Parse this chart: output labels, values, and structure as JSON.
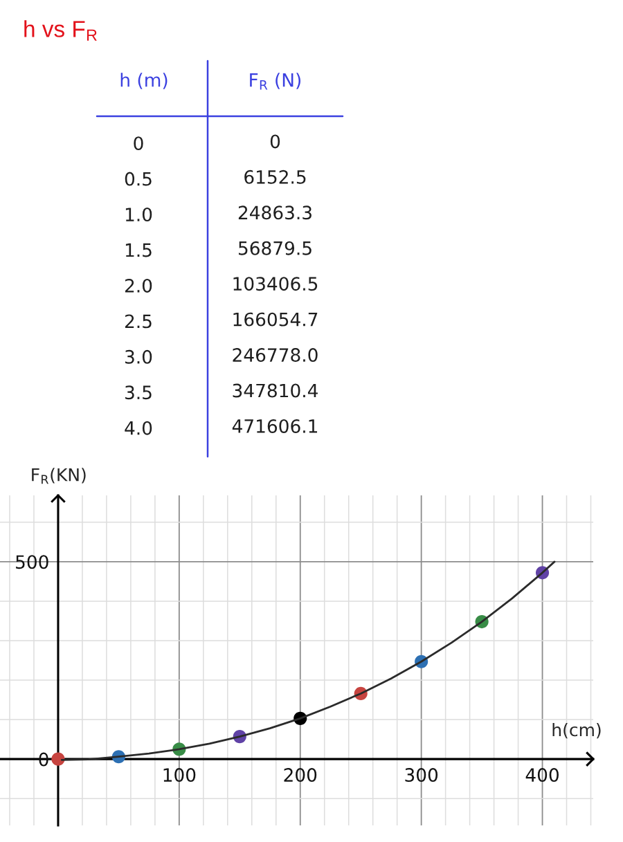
{
  "chart_data": [
    {
      "type": "heatmap",
      "title": "h vs F$_{R}$",
      "ylabel": "h (m)",
      "categories": [
        "F$_{R}$ (N)"
      ],
      "y_categories": [
        "0",
        "0.5",
        "1.0",
        "1.5",
        "2.0",
        "2.5",
        "3.0",
        "3.5",
        "4.0"
      ],
      "cells": [
        [
          0
        ],
        [
          6152.5
        ],
        [
          24863.3
        ],
        [
          56879.5
        ],
        [
          103406.5
        ],
        [
          166054.7
        ],
        [
          246778.0
        ],
        [
          347810.4
        ],
        [
          471606.1
        ]
      ],
      "cell_labels": [
        [
          "0"
        ],
        [
          "6152.5"
        ],
        [
          "24863.3"
        ],
        [
          "56879.5"
        ],
        [
          "103406.5"
        ],
        [
          "166054.7"
        ],
        [
          "246778.0"
        ],
        [
          "347810.4"
        ],
        [
          "471606.1"
        ]
      ]
    },
    {
      "type": "scatter",
      "xlabel": "h(cm)",
      "ylabel": "F$_{R}$(KN)",
      "x": [
        0,
        50,
        100,
        150,
        200,
        250,
        300,
        350,
        400
      ],
      "series": [
        {
          "type": "scatter",
          "marker": "circle",
          "colors": [
            "#c74440",
            "#2d70b3",
            "#388c46",
            "#6042a6",
            "#000000",
            "#c74440",
            "#2d70b3",
            "#388c46",
            "#6042a6"
          ],
          "values": [
            0,
            6,
            25,
            57,
            103,
            166,
            247,
            348,
            472
          ]
        },
        {
          "type": "line",
          "color": "#2b2b2b",
          "line_style": "solid",
          "x": [
            3,
            25,
            50,
            75,
            100,
            125,
            150,
            175,
            200,
            225,
            250,
            275,
            300,
            325,
            350,
            375,
            400,
            410
          ],
          "values": [
            -2,
            -1,
            6,
            14,
            25,
            39,
            57,
            78,
            103,
            133,
            166,
            204,
            247,
            295,
            348,
            407,
            472,
            500
          ]
        }
      ],
      "xlim": [
        -48,
        442
      ],
      "ylim": [
        -168,
        668
      ],
      "xticks": [
        {
          "value": -40,
          "label": null
        },
        {
          "value": -20,
          "label": null
        },
        {
          "value": 0,
          "label": null
        },
        {
          "value": 20,
          "label": null
        },
        {
          "value": 40,
          "label": null
        },
        {
          "value": 60,
          "label": null
        },
        {
          "value": 80,
          "label": null
        },
        100,
        {
          "value": 120,
          "label": null
        },
        {
          "value": 140,
          "label": null
        },
        {
          "value": 160,
          "label": null
        },
        {
          "value": 180,
          "label": null
        },
        200,
        {
          "value": 220,
          "label": null
        },
        {
          "value": 240,
          "label": null
        },
        {
          "value": 260,
          "label": null
        },
        {
          "value": 280,
          "label": null
        },
        300,
        {
          "value": 320,
          "label": null
        },
        {
          "value": 340,
          "label": null
        },
        {
          "value": 360,
          "label": null
        },
        {
          "value": 380,
          "label": null
        },
        400,
        {
          "value": 420,
          "label": null
        },
        {
          "value": 440,
          "label": null
        }
      ],
      "yticks": [
        {
          "value": -100,
          "label": null
        },
        0,
        {
          "value": 100,
          "label": null
        },
        {
          "value": 200,
          "label": null
        },
        {
          "value": 300,
          "label": null
        },
        {
          "value": 400,
          "label": null
        },
        500,
        {
          "value": 600,
          "label": null
        }
      ],
      "grid": true
    }
  ]
}
